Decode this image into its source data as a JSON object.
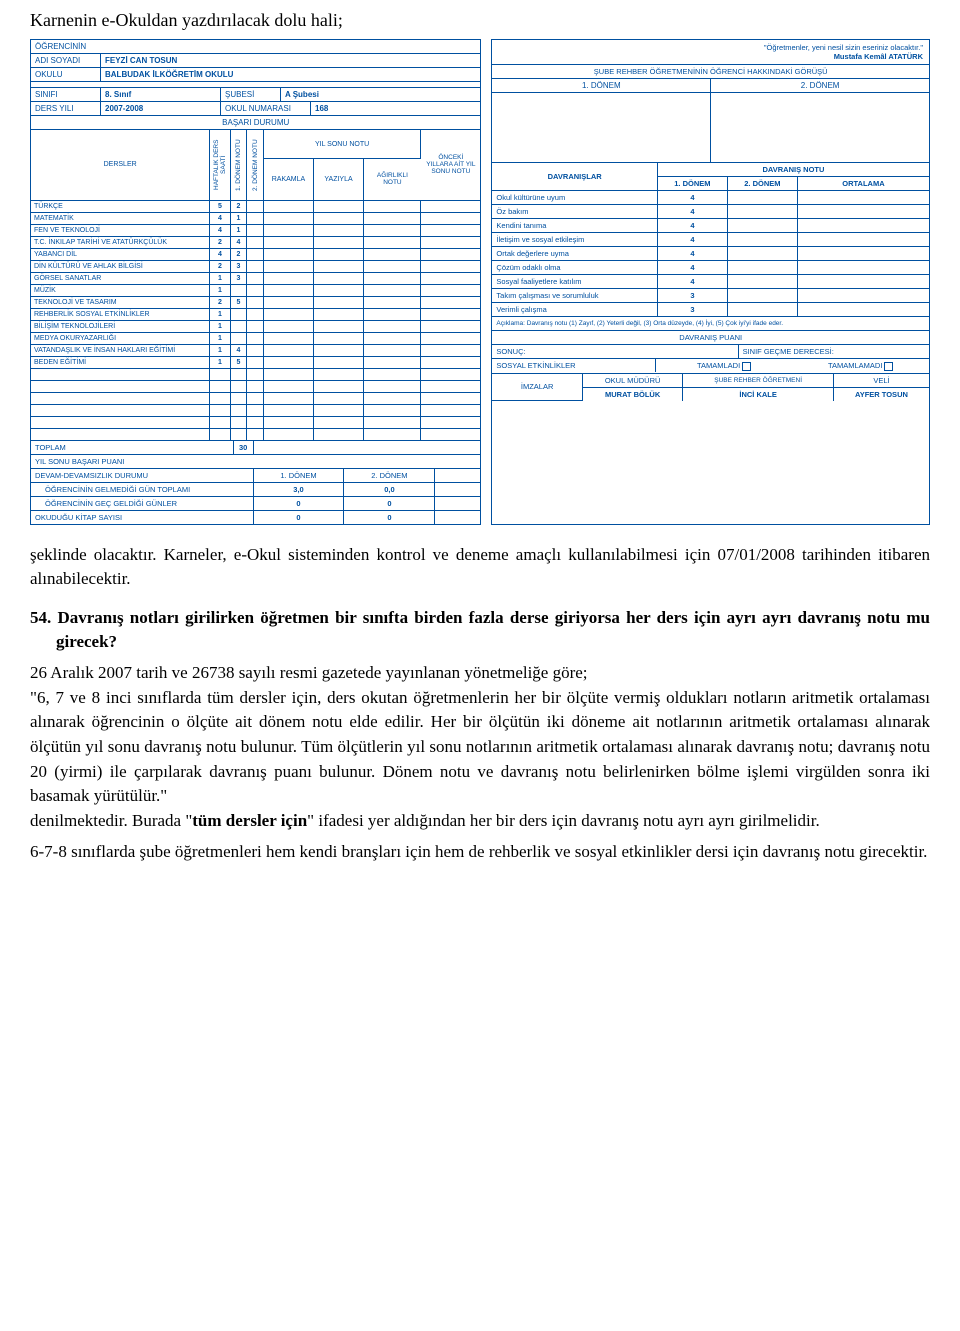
{
  "title": "Karnenin e-Okuldan yazdırılacak dolu hali;",
  "leftCard": {
    "ogrencinin": "ÖĞRENCİNİN",
    "adiSoyadiLabel": "ADI SOYADI",
    "adiSoyadi": "FEYZİ CAN  TOSUN",
    "okuluLabel": "OKULU",
    "okulu": "BALBUDAK İLKÖĞRETİM OKULU",
    "sinifiLabel": "SINIFI",
    "sinifi": "8. Sınıf",
    "subesiLabel": "ŞUBESİ",
    "subesi": "A Şubesi",
    "dersYiliLabel": "DERS YILI",
    "dersYili": "2007-2008",
    "okulNoLabel": "OKUL NUMARASI",
    "okulNo": "168",
    "basariDurumu": "BAŞARI DURUMU",
    "colDersler": "DERSLER",
    "colHaftalik": "HAFTALIK DERS SAATİ",
    "colD1": "1. DÖNEM NOTU",
    "colD2": "2. DÖNEM NOTU",
    "colYilSonu": "YIL SONU NOTU",
    "colRakamla": "RAKAMLA",
    "colYaziyla": "YAZIYLA",
    "colAgirlik": "AĞIRLIKLI NOTU",
    "colOnceki": "ÖNCEKİ YILLARA AİT YIL SONU NOTU",
    "rows": [
      {
        "name": "TÜRKÇE",
        "h": "5",
        "d1": "2"
      },
      {
        "name": "MATEMATİK",
        "h": "4",
        "d1": "1"
      },
      {
        "name": "FEN VE TEKNOLOJİ",
        "h": "4",
        "d1": "1"
      },
      {
        "name": "T.C. İNKILAP TARİHİ VE ATATÜRKÇÜLÜK",
        "h": "2",
        "d1": "4"
      },
      {
        "name": "YABANCI DİL",
        "h": "4",
        "d1": "2"
      },
      {
        "name": "DİN KÜLTÜRÜ VE AHLAK BİLGİSİ",
        "h": "2",
        "d1": "3"
      },
      {
        "name": "GÖRSEL SANATLAR",
        "h": "1",
        "d1": "3"
      },
      {
        "name": "MÜZİK",
        "h": "1",
        "d1": ""
      },
      {
        "name": "TEKNOLOJİ VE TASARIM",
        "h": "2",
        "d1": "5"
      },
      {
        "name": "REHBERLİK SOSYAL ETKİNLİKLER",
        "h": "1",
        "d1": ""
      },
      {
        "name": "BİLİŞİM TEKNOLOJİLERİ",
        "h": "1",
        "d1": ""
      },
      {
        "name": "MEDYA OKURYAZARLIĞI",
        "h": "1",
        "d1": ""
      },
      {
        "name": "VATANDAŞLIK VE İNSAN HAKLARI EĞİTİMİ",
        "h": "1",
        "d1": "4"
      },
      {
        "name": "BEDEN EĞİTİMİ",
        "h": "1",
        "d1": "5"
      }
    ],
    "toplamLabel": "TOPLAM",
    "toplam": "30",
    "yilSonuPuani": "YIL SONU BAŞARI PUANI",
    "devamLabel": "DEVAM-DEVAMSIZLIK DURUMU",
    "d1Label": "1. DÖNEM",
    "d2Label": "2. DÖNEM",
    "gelmedigiLabel": "ÖĞRENCİNİN GELMEDİĞİ GÜN TOPLAMI",
    "gelmedigiD1": "3,0",
    "gelmedigiD2": "0,0",
    "gecGeldigiLabel": "ÖĞRENCİNİN GEÇ GELDİĞİ GÜNLER",
    "gecD1": "0",
    "gecD2": "0",
    "kitapLabel": "OKUDUĞU KİTAP SAYISI",
    "kitapD1": "0",
    "kitapD2": "0"
  },
  "rightCard": {
    "quote": "\"Öğretmenler, yeni nesil sizin eseriniz olacaktır.\"",
    "author": "Mustafa Kemâl ATATÜRK",
    "gorus": "ŞUBE REHBER ÖĞRETMENİNİN ÖĞRENCİ HAKKINDAKİ GÖRÜŞÜ",
    "d1": "1. DÖNEM",
    "d2": "2. DÖNEM",
    "davranislarLabel": "DAVRANIŞLAR",
    "davranisNotuLabel": "DAVRANIŞ NOTU",
    "ortalama": "ORTALAMA",
    "behav": [
      {
        "name": "Okul kültürüne uyum",
        "v": "4"
      },
      {
        "name": "Öz bakım",
        "v": "4"
      },
      {
        "name": "Kendini tanıma",
        "v": "4"
      },
      {
        "name": "İletişim ve sosyal etkileşim",
        "v": "4"
      },
      {
        "name": "Ortak değerlere uyma",
        "v": "4"
      },
      {
        "name": "Çözüm odaklı olma",
        "v": "4"
      },
      {
        "name": "Sosyal faaliyetlere katılım",
        "v": "4"
      },
      {
        "name": "Takım çalışması ve sorumluluk",
        "v": "3"
      },
      {
        "name": "Verimli çalışma",
        "v": "3"
      }
    ],
    "aciklama": "Açıklama: Davranış notu (1) Zayıf, (2) Yeterli değil, (3) Orta düzeyde, (4) İyi, (5) Çok iyi'yi ifade eder.",
    "davranisPuani": "DAVRANIŞ PUANI",
    "sonuc": "SONUÇ:",
    "sinifGecme": "SINIF GEÇME DERECESİ:",
    "sosyal": "SOSYAL ETKİNLİKLER",
    "tamamladi": "TAMAMLADI",
    "tamamlamadi": "TAMAMLAMADI",
    "imzalar": "İMZALAR",
    "okulMuduru": "OKUL MÜDÜRÜ",
    "subeRehber": "ŞUBE REHBER ÖĞRETMENİ",
    "veli": "VELİ",
    "mudurName": "MURAT BÖLÜK",
    "ogretmenName": "İNCİ KALE",
    "veliName": "AYFER TOSUN"
  },
  "body": {
    "p1": "şeklinde olacaktır. Karneler, e-Okul sisteminden kontrol ve deneme amaçlı kullanılabilmesi için 07/01/2008 tarihinden itibaren alınabilecektir.",
    "q54": "54. Davranış notları girilirken öğretmen bir sınıfta birden fazla derse giriyorsa her ders için ayrı ayrı davranış notu mu girecek?",
    "p2a": "26 Aralık 2007 tarih ve 26738 sayılı resmi gazetede yayınlanan yönetmeliğe göre;",
    "p2b": "\"6, 7 ve 8 inci sınıflarda tüm dersler için, ders okutan öğretmenlerin her bir ölçüte vermiş oldukları notların aritmetik ortalaması alınarak öğrencinin o ölçüte ait dönem notu elde edilir. Her bir ölçütün iki döneme ait notlarının aritmetik ortalaması alınarak ölçütün yıl sonu davranış notu bulunur. Tüm ölçütlerin yıl sonu notlarının aritmetik ortalaması alınarak davranış notu;  davranış notu 20 (yirmi) ile çarpılarak davranış puanı bulunur. Dönem notu ve davranış notu belirlenirken bölme işlemi virgülden sonra iki basamak yürütülür.\"",
    "p2c_pre": "denilmektedir. Burada \"",
    "p2c_bold": "tüm dersler için",
    "p2c_post": "\" ifadesi yer aldığından her bir ders için davranış notu ayrı ayrı girilmelidir.",
    "p3": "6-7-8 sınıflarda şube öğretmenleri hem kendi branşları için hem de rehberlik ve sosyal etkinlikler dersi için davranış notu girecektir."
  }
}
